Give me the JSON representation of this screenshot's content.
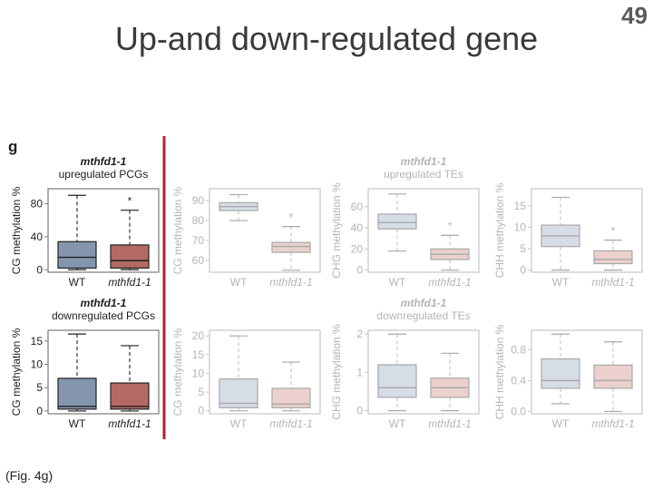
{
  "slide": {
    "title": "Up-and down-regulated gene",
    "page_number": "49",
    "caption": "(Fig. 4g)"
  },
  "figure": {
    "panel_label": "g",
    "colors": {
      "wt_box_active": "#8496ae",
      "mut_box_active": "#b36a62",
      "wt_box_faded": "#d6dde6",
      "mut_box_faded": "#ebd0cd",
      "divider": "#b0232a",
      "frame": "#7a7a7a",
      "frame_faded": "#c6c6c6"
    }
  },
  "chart_data": [
    {
      "type": "box",
      "row": 0,
      "col": 0,
      "faded": false,
      "title_line1": "mthfd1-1",
      "title_line2": "upregulated PCGs",
      "ylabel": "CG methylation %",
      "categories": [
        "WT",
        "mthfd1-1"
      ],
      "ylim": [
        -3,
        98
      ],
      "yticks": [
        "0",
        "40",
        "80"
      ],
      "ytick_values": [
        0,
        40,
        80
      ],
      "significance": "*",
      "boxes": [
        {
          "category": "WT",
          "min": 0,
          "q1": 2,
          "median": 15,
          "q3": 34,
          "max": 90
        },
        {
          "category": "mthfd1-1",
          "min": 0,
          "q1": 2,
          "median": 11,
          "q3": 30,
          "max": 72
        }
      ]
    },
    {
      "type": "box",
      "row": 0,
      "col": 1,
      "faded": true,
      "title_line1": "",
      "title_line2": "",
      "ylabel": "CG methylation %",
      "categories": [
        "WT",
        "mthfd1-1"
      ],
      "ylim": [
        54,
        96
      ],
      "yticks": [
        "60",
        "70",
        "80",
        "90"
      ],
      "ytick_values": [
        60,
        70,
        80,
        90
      ],
      "significance": "*",
      "boxes": [
        {
          "category": "WT",
          "min": 80,
          "q1": 85,
          "median": 87,
          "q3": 89,
          "max": 93
        },
        {
          "category": "mthfd1-1",
          "min": 55,
          "q1": 64,
          "median": 67,
          "q3": 69,
          "max": 77
        }
      ]
    },
    {
      "type": "box",
      "row": 0,
      "col": 2,
      "faded": true,
      "title_line1": "mthfd1-1",
      "title_line2": "upregulated TEs",
      "ylabel": "CHG methylation %",
      "categories": [
        "WT",
        "mthfd1-1"
      ],
      "ylim": [
        -2,
        77
      ],
      "yticks": [
        "0",
        "20",
        "40",
        "60"
      ],
      "ytick_values": [
        0,
        20,
        40,
        60
      ],
      "significance": "*",
      "boxes": [
        {
          "category": "WT",
          "min": 18,
          "q1": 39,
          "median": 45,
          "q3": 53,
          "max": 72
        },
        {
          "category": "mthfd1-1",
          "min": 0,
          "q1": 10,
          "median": 15,
          "q3": 20,
          "max": 33
        }
      ]
    },
    {
      "type": "box",
      "row": 0,
      "col": 3,
      "faded": true,
      "title_line1": "",
      "title_line2": "",
      "ylabel": "CHH methylation %",
      "categories": [
        "WT",
        "mthfd1-1"
      ],
      "ylim": [
        -0.5,
        19
      ],
      "yticks": [
        "0",
        "5",
        "10",
        "15"
      ],
      "ytick_values": [
        0,
        5,
        10,
        15
      ],
      "significance": "*",
      "boxes": [
        {
          "category": "WT",
          "min": 0,
          "q1": 5.5,
          "median": 8,
          "q3": 10.5,
          "max": 17
        },
        {
          "category": "mthfd1-1",
          "min": 0,
          "q1": 1.5,
          "median": 2.5,
          "q3": 4.5,
          "max": 7
        }
      ]
    },
    {
      "type": "box",
      "row": 1,
      "col": 0,
      "faded": false,
      "title_line1": "mthfd1-1",
      "title_line2": "downregulated PCGs",
      "ylabel": "CG methylation %",
      "categories": [
        "WT",
        "mthfd1-1"
      ],
      "ylim": [
        -0.6,
        17.3
      ],
      "yticks": [
        "0",
        "5",
        "10",
        "15"
      ],
      "ytick_values": [
        0,
        5,
        10,
        15
      ],
      "significance": "",
      "boxes": [
        {
          "category": "WT",
          "min": 0,
          "q1": 0.4,
          "median": 1,
          "q3": 7,
          "max": 16.5
        },
        {
          "category": "mthfd1-1",
          "min": 0,
          "q1": 0.4,
          "median": 1,
          "q3": 6,
          "max": 14
        }
      ]
    },
    {
      "type": "box",
      "row": 1,
      "col": 1,
      "faded": true,
      "title_line1": "",
      "title_line2": "",
      "ylabel": "CG methylation %",
      "categories": [
        "WT",
        "mthfd1-1"
      ],
      "ylim": [
        -0.8,
        21.5
      ],
      "yticks": [
        "0",
        "5",
        "10",
        "15",
        "20"
      ],
      "ytick_values": [
        0,
        5,
        10,
        15,
        20
      ],
      "significance": "",
      "boxes": [
        {
          "category": "WT",
          "min": 0,
          "q1": 0.8,
          "median": 2,
          "q3": 8.5,
          "max": 20
        },
        {
          "category": "mthfd1-1",
          "min": 0,
          "q1": 0.8,
          "median": 1.8,
          "q3": 6,
          "max": 13
        }
      ]
    },
    {
      "type": "box",
      "row": 1,
      "col": 2,
      "faded": true,
      "title_line1": "mthfd1-1",
      "title_line2": "downregulated TEs",
      "ylabel": "CHG methylation %",
      "categories": [
        "WT",
        "mthfd1-1"
      ],
      "ylim": [
        -0.08,
        2.1
      ],
      "yticks": [
        "0",
        "1",
        "2"
      ],
      "ytick_values": [
        0,
        1,
        2
      ],
      "significance": "",
      "boxes": [
        {
          "category": "WT",
          "min": 0,
          "q1": 0.35,
          "median": 0.6,
          "q3": 1.2,
          "max": 2
        },
        {
          "category": "mthfd1-1",
          "min": 0,
          "q1": 0.35,
          "median": 0.6,
          "q3": 0.85,
          "max": 1.5
        }
      ]
    },
    {
      "type": "box",
      "row": 1,
      "col": 3,
      "faded": true,
      "title_line1": "",
      "title_line2": "",
      "ylabel": "CHH methylation %",
      "categories": [
        "WT",
        "mthfd1-1"
      ],
      "ylim": [
        -0.03,
        1.05
      ],
      "yticks": [
        "0.0",
        "0.4",
        "0.8"
      ],
      "ytick_values": [
        0,
        0.4,
        0.8
      ],
      "significance": "",
      "boxes": [
        {
          "category": "WT",
          "min": 0.1,
          "q1": 0.3,
          "median": 0.4,
          "q3": 0.68,
          "max": 1.0
        },
        {
          "category": "mthfd1-1",
          "min": 0,
          "q1": 0.3,
          "median": 0.4,
          "q3": 0.6,
          "max": 0.9
        }
      ]
    }
  ]
}
